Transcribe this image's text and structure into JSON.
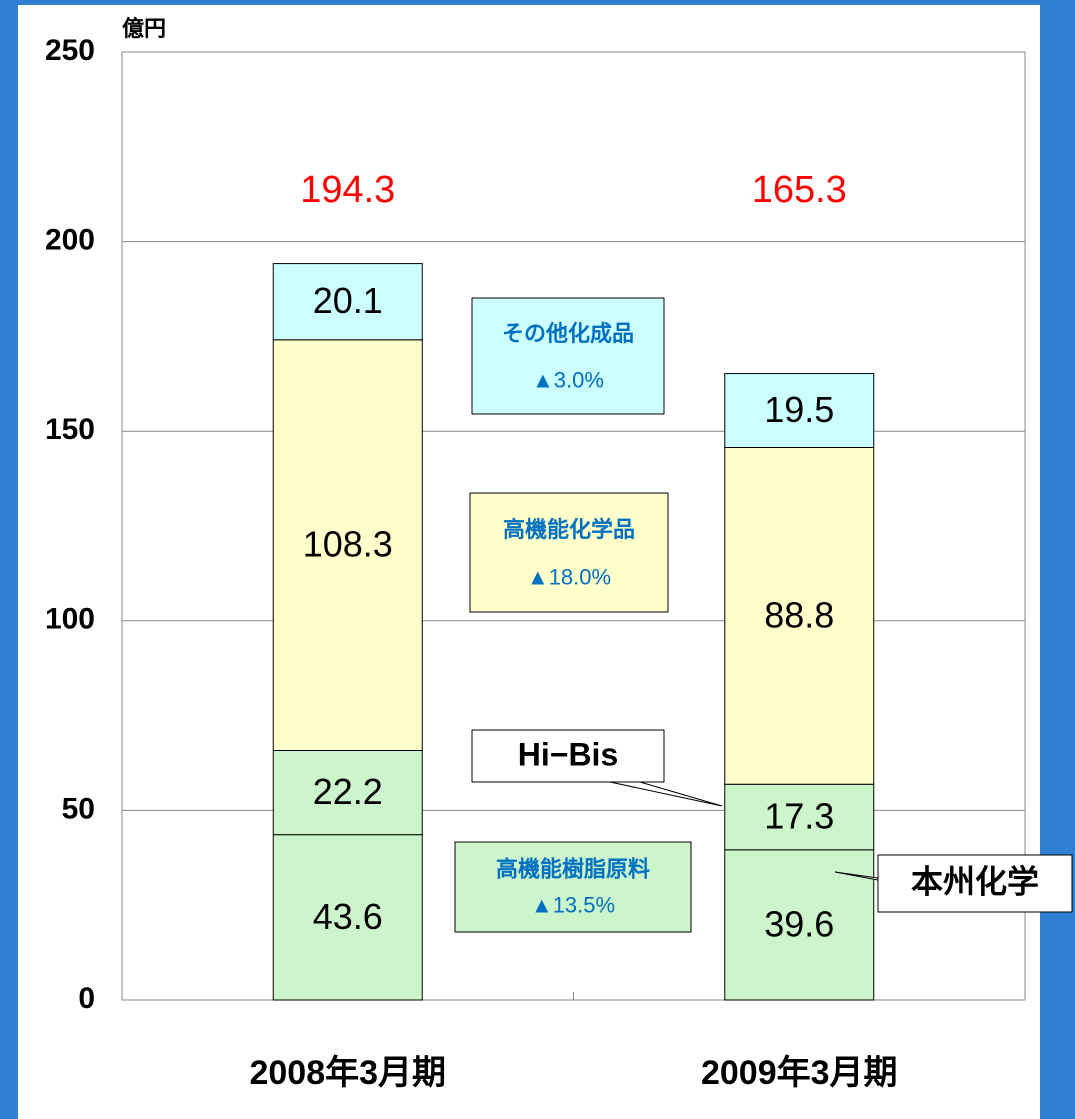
{
  "chart_data": {
    "type": "stacked_bar",
    "unit_label": "億円",
    "categories": [
      "2008年3月期",
      "2009年3月期"
    ],
    "series": [
      {
        "name": "本州化学",
        "color": "#ccf5cc",
        "values": [
          43.6,
          39.6
        ]
      },
      {
        "name": "Hi−Bis",
        "color": "#ccf5cc",
        "values": [
          22.2,
          17.3
        ]
      },
      {
        "name": "高機能化学品",
        "color": "#ffffcc",
        "values": [
          108.3,
          88.8
        ],
        "change": "▲18.0%"
      },
      {
        "name": "その他化成品",
        "color": "#ccffff",
        "values": [
          20.1,
          19.5
        ],
        "change": "▲3.0%"
      }
    ],
    "group_annotation": {
      "label": "高機能樹脂原料",
      "change": "▲13.5%",
      "color": "#ccf5cc"
    },
    "totals": [
      194.3,
      165.3
    ],
    "totals_color": "#ff0000",
    "change_color": "#0070c0",
    "ylim": [
      0,
      250
    ],
    "yticks": [
      0,
      50,
      100,
      150,
      200,
      250
    ],
    "grid": true
  }
}
